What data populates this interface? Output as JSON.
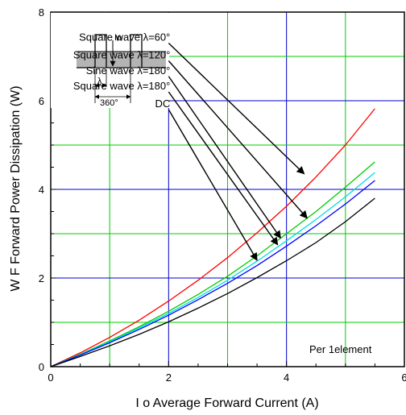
{
  "chart_data": {
    "type": "line",
    "title": "",
    "xlabel": "I o   Average Forward Current   (A)",
    "ylabel": "W F   Forward Power Dissipation   (W)",
    "xlim": [
      0,
      6
    ],
    "ylim": [
      0,
      8
    ],
    "x_ticks": [
      "0",
      "2",
      "4",
      "6"
    ],
    "y_ticks": [
      "0",
      "2",
      "4",
      "6",
      "8"
    ],
    "grid": true,
    "grid_colors": {
      "minor": "#00cc00",
      "major": "#0000cc"
    },
    "note": "Per 1element",
    "series": [
      {
        "id": "sq60",
        "color": "#ff0000",
        "points": [
          [
            0,
            0
          ],
          [
            0.5,
            0.31
          ],
          [
            1,
            0.66
          ],
          [
            1.5,
            1.05
          ],
          [
            2,
            1.48
          ],
          [
            2.5,
            1.95
          ],
          [
            3,
            2.46
          ],
          [
            3.5,
            3.02
          ],
          [
            4,
            3.62
          ],
          [
            4.5,
            4.28
          ],
          [
            5,
            5.0
          ],
          [
            5.5,
            5.82
          ]
        ]
      },
      {
        "id": "sq120",
        "color": "#00cc00",
        "points": [
          [
            0,
            0
          ],
          [
            0.5,
            0.28
          ],
          [
            1,
            0.58
          ],
          [
            1.5,
            0.9
          ],
          [
            2,
            1.25
          ],
          [
            2.5,
            1.63
          ],
          [
            3,
            2.04
          ],
          [
            3.5,
            2.5
          ],
          [
            4,
            3.0
          ],
          [
            4.5,
            3.5
          ],
          [
            5,
            4.05
          ],
          [
            5.5,
            4.62
          ]
        ]
      },
      {
        "id": "sine180",
        "color": "#00dddd",
        "points": [
          [
            0,
            0
          ],
          [
            0.5,
            0.27
          ],
          [
            1,
            0.56
          ],
          [
            1.5,
            0.87
          ],
          [
            2,
            1.2
          ],
          [
            2.5,
            1.56
          ],
          [
            3,
            1.95
          ],
          [
            3.5,
            2.38
          ],
          [
            4,
            2.84
          ],
          [
            4.5,
            3.32
          ],
          [
            5,
            3.83
          ],
          [
            5.5,
            4.38
          ]
        ]
      },
      {
        "id": "sq180",
        "color": "#0000ff",
        "points": [
          [
            0,
            0
          ],
          [
            0.5,
            0.26
          ],
          [
            1,
            0.54
          ],
          [
            1.5,
            0.84
          ],
          [
            2,
            1.16
          ],
          [
            2.5,
            1.51
          ],
          [
            3,
            1.88
          ],
          [
            3.5,
            2.28
          ],
          [
            4,
            2.72
          ],
          [
            4.5,
            3.18
          ],
          [
            5,
            3.67
          ],
          [
            5.5,
            4.2
          ]
        ]
      },
      {
        "id": "dc",
        "color": "#000000",
        "points": [
          [
            0,
            0
          ],
          [
            0.5,
            0.23
          ],
          [
            1,
            0.47
          ],
          [
            1.5,
            0.73
          ],
          [
            2,
            1.01
          ],
          [
            2.5,
            1.32
          ],
          [
            3,
            1.65
          ],
          [
            3.5,
            2.01
          ],
          [
            4,
            2.39
          ],
          [
            4.5,
            2.8
          ],
          [
            5,
            3.27
          ],
          [
            5.5,
            3.8
          ]
        ]
      }
    ],
    "annotations": [
      {
        "text": "Square wave λ=60°",
        "target": "sq60",
        "from": [
          2.0,
          7.3
        ],
        "to": [
          4.3,
          4.35
        ]
      },
      {
        "text": "Square wave λ=120°",
        "target": "sq120",
        "from": [
          2.0,
          6.9
        ],
        "to": [
          4.35,
          3.35
        ]
      },
      {
        "text": "Sine wave λ=180°",
        "target": "sine180",
        "from": [
          2.0,
          6.55
        ],
        "to": [
          3.9,
          2.9
        ]
      },
      {
        "text": "Square wave λ=180°",
        "target": "sq180",
        "from": [
          2.0,
          6.2
        ],
        "to": [
          3.85,
          2.75
        ]
      },
      {
        "text": "DC",
        "target": "dc",
        "from": [
          2.0,
          5.8
        ],
        "to": [
          3.5,
          2.4
        ]
      }
    ],
    "inset": {
      "label_io": "Io",
      "label_lambda": "λ",
      "label_period": "360°"
    }
  }
}
